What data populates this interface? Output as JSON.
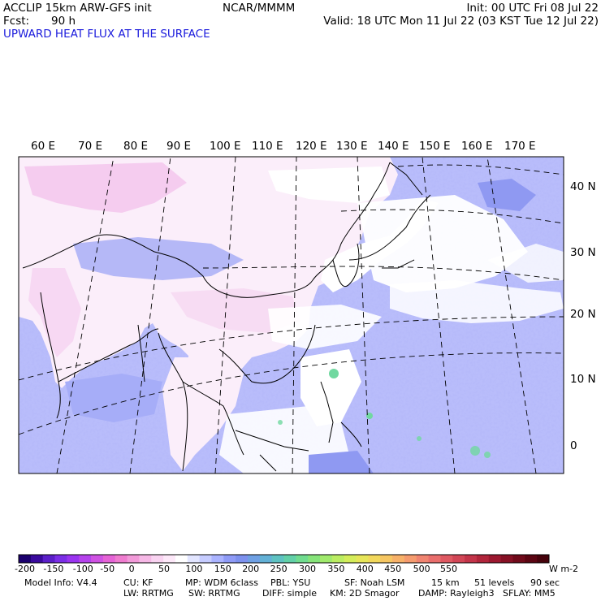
{
  "header": {
    "model": "ACCLIP 15km ARW-GFS init",
    "forecast_label": "Fcst:",
    "forecast_value": "90 h",
    "center": "NCAR/MMMM",
    "init": "Init: 00 UTC Fri 08 Jul 22",
    "valid": "Valid: 18 UTC Mon 11 Jul 22 (03 KST Tue 12 Jul 22)",
    "field": "UPWARD HEAT FLUX AT THE SURFACE"
  },
  "map": {
    "lon_labels": [
      "60 E",
      "70 E",
      "80 E",
      "90 E",
      "100 E",
      "110 E",
      "120 E",
      "130 E",
      "140 E",
      "150 E",
      "160 E",
      "170 E"
    ],
    "lat_labels": [
      "40 N",
      "30 N",
      "20 N",
      "10 N",
      "0"
    ]
  },
  "colorbar": {
    "ticks": [
      "-200",
      "-150",
      "-100",
      "-50",
      "0",
      "50",
      "100",
      "150",
      "200",
      "250",
      "300",
      "350",
      "400",
      "450",
      "500",
      "550"
    ],
    "unit": "W m-2",
    "colors": [
      "#1b006e",
      "#3a0a9e",
      "#5b1fc9",
      "#7b2ee6",
      "#9a34f0",
      "#b542ec",
      "#cf52e3",
      "#e563d6",
      "#ef7ccf",
      "#f29ad9",
      "#f6b8e6",
      "#f9d3f1",
      "#fde8f9",
      "#ffffff",
      "#e2e5ff",
      "#c6ccff",
      "#aab3ff",
      "#8f9bf7",
      "#7d91ee",
      "#6fa0e4",
      "#63b1d6",
      "#5ec2c2",
      "#62d0a8",
      "#70dc8f",
      "#86e47a",
      "#a0ea6c",
      "#bbed62",
      "#d4ed5a",
      "#e7e659",
      "#f2d85c",
      "#f6c662",
      "#f7b169",
      "#f59b6e",
      "#f08470",
      "#e96e6c",
      "#df5962",
      "#d24656",
      "#c33449",
      "#b1253b",
      "#9c182f",
      "#861024",
      "#700a1a",
      "#5b0512",
      "#46020b"
    ]
  },
  "footer": {
    "row1": [
      "Model Info: V4.4",
      "CU: KF",
      "MP: WDM 6class",
      "PBL: YSU",
      "SF: Noah LSM",
      "15 km",
      "51 levels",
      "90 sec"
    ],
    "row2": [
      "LW: RRTMG",
      "SW: RRTMG",
      "DIFF: simple",
      "KM: 2D Smagor",
      "DAMP: Rayleigh3",
      "SFLAY: MM5"
    ]
  }
}
